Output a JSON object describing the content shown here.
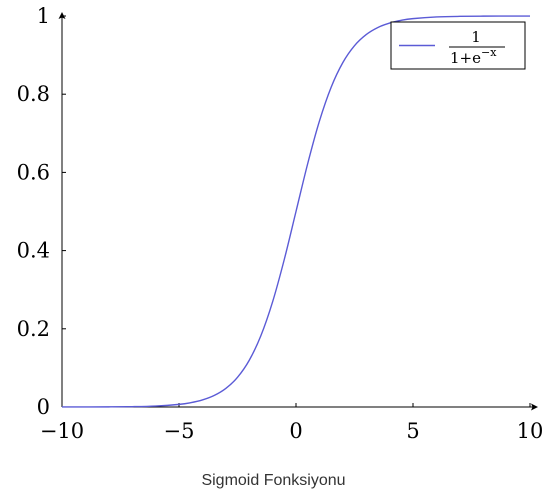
{
  "caption": "Sigmoid Fonksiyonu",
  "chart_data": {
    "type": "line",
    "title": "",
    "xlabel": "",
    "ylabel": "",
    "xlim": [
      -10,
      10
    ],
    "ylim": [
      0,
      1
    ],
    "x_ticks": [
      {
        "value": -10,
        "label": "−10"
      },
      {
        "value": -5,
        "label": "−5"
      },
      {
        "value": 0,
        "label": "0"
      },
      {
        "value": 5,
        "label": "5"
      },
      {
        "value": 10,
        "label": "10"
      }
    ],
    "y_ticks": [
      {
        "value": 0,
        "label": "0"
      },
      {
        "value": 0.2,
        "label": "0.2"
      },
      {
        "value": 0.4,
        "label": "0.4"
      },
      {
        "value": 0.6,
        "label": "0.6"
      },
      {
        "value": 0.8,
        "label": "0.8"
      },
      {
        "value": 1,
        "label": "1"
      }
    ],
    "grid": false,
    "legend_position": "top-right",
    "series": [
      {
        "name": "1/(1+e^{−x})",
        "legend_numerator": "1",
        "legend_denominator_base": "1+e",
        "legend_denominator_exponent": "−x",
        "color": "#5b5bd6",
        "x": [
          -10,
          -9,
          -8,
          -7,
          -6,
          -5,
          -4.5,
          -4,
          -3.5,
          -3,
          -2.5,
          -2,
          -1.5,
          -1,
          -0.5,
          0,
          0.5,
          1,
          1.5,
          2,
          2.5,
          3,
          3.5,
          4,
          4.5,
          5,
          6,
          7,
          8,
          9,
          10
        ],
        "y": [
          5e-05,
          0.00012,
          0.00034,
          0.00091,
          0.00247,
          0.00669,
          0.01099,
          0.01799,
          0.02931,
          0.04743,
          0.07586,
          0.1192,
          0.18243,
          0.26894,
          0.37754,
          0.5,
          0.62246,
          0.73106,
          0.81757,
          0.8808,
          0.92414,
          0.95257,
          0.97069,
          0.98201,
          0.98901,
          0.99331,
          0.99753,
          0.99909,
          0.99966,
          0.99988,
          0.99995
        ]
      }
    ]
  }
}
